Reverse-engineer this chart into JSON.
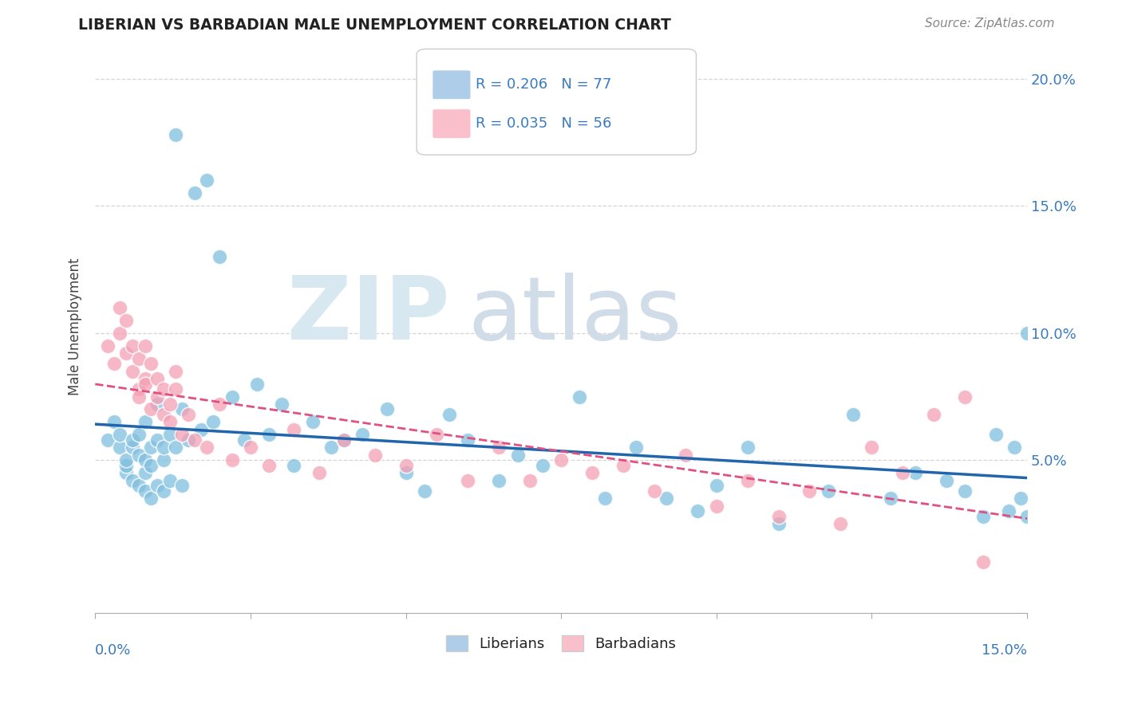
{
  "title": "LIBERIAN VS BARBADIAN MALE UNEMPLOYMENT CORRELATION CHART",
  "source": "Source: ZipAtlas.com",
  "ylabel": "Male Unemployment",
  "xlim": [
    0.0,
    0.15
  ],
  "ylim": [
    -0.01,
    0.215
  ],
  "ytick_vals": [
    0.05,
    0.1,
    0.15,
    0.2
  ],
  "ytick_labels": [
    "5.0%",
    "10.0%",
    "15.0%",
    "20.0%"
  ],
  "liberian_color": "#7fbfdf",
  "barbadian_color": "#f4a0b5",
  "liberian_R": 0.206,
  "liberian_N": 77,
  "barbadian_R": 0.035,
  "barbadian_N": 56,
  "legend_labels": [
    "Liberians",
    "Barbadians"
  ],
  "liberian_scatter_x": [
    0.002,
    0.003,
    0.004,
    0.004,
    0.005,
    0.005,
    0.005,
    0.006,
    0.006,
    0.006,
    0.007,
    0.007,
    0.007,
    0.008,
    0.008,
    0.008,
    0.008,
    0.009,
    0.009,
    0.009,
    0.01,
    0.01,
    0.01,
    0.011,
    0.011,
    0.011,
    0.012,
    0.012,
    0.013,
    0.013,
    0.014,
    0.014,
    0.015,
    0.016,
    0.017,
    0.018,
    0.019,
    0.02,
    0.022,
    0.024,
    0.026,
    0.028,
    0.03,
    0.032,
    0.035,
    0.038,
    0.04,
    0.043,
    0.047,
    0.05,
    0.053,
    0.057,
    0.06,
    0.065,
    0.068,
    0.072,
    0.078,
    0.082,
    0.087,
    0.092,
    0.097,
    0.1,
    0.105,
    0.11,
    0.118,
    0.122,
    0.128,
    0.132,
    0.137,
    0.14,
    0.143,
    0.145,
    0.147,
    0.148,
    0.149,
    0.15,
    0.15
  ],
  "liberian_scatter_y": [
    0.058,
    0.065,
    0.055,
    0.06,
    0.045,
    0.048,
    0.05,
    0.042,
    0.055,
    0.058,
    0.04,
    0.052,
    0.06,
    0.038,
    0.045,
    0.05,
    0.065,
    0.035,
    0.048,
    0.055,
    0.04,
    0.058,
    0.072,
    0.038,
    0.05,
    0.055,
    0.042,
    0.06,
    0.178,
    0.055,
    0.04,
    0.07,
    0.058,
    0.155,
    0.062,
    0.16,
    0.065,
    0.13,
    0.075,
    0.058,
    0.08,
    0.06,
    0.072,
    0.048,
    0.065,
    0.055,
    0.058,
    0.06,
    0.07,
    0.045,
    0.038,
    0.068,
    0.058,
    0.042,
    0.052,
    0.048,
    0.075,
    0.035,
    0.055,
    0.035,
    0.03,
    0.04,
    0.055,
    0.025,
    0.038,
    0.068,
    0.035,
    0.045,
    0.042,
    0.038,
    0.028,
    0.06,
    0.03,
    0.055,
    0.035,
    0.028,
    0.1
  ],
  "barbadian_scatter_x": [
    0.002,
    0.003,
    0.004,
    0.004,
    0.005,
    0.005,
    0.006,
    0.006,
    0.007,
    0.007,
    0.007,
    0.008,
    0.008,
    0.008,
    0.009,
    0.009,
    0.01,
    0.01,
    0.011,
    0.011,
    0.012,
    0.012,
    0.013,
    0.013,
    0.014,
    0.015,
    0.016,
    0.018,
    0.02,
    0.022,
    0.025,
    0.028,
    0.032,
    0.036,
    0.04,
    0.045,
    0.05,
    0.055,
    0.06,
    0.065,
    0.07,
    0.075,
    0.08,
    0.085,
    0.09,
    0.095,
    0.1,
    0.105,
    0.11,
    0.115,
    0.12,
    0.125,
    0.13,
    0.135,
    0.14,
    0.143
  ],
  "barbadian_scatter_y": [
    0.095,
    0.088,
    0.11,
    0.1,
    0.092,
    0.105,
    0.085,
    0.095,
    0.078,
    0.09,
    0.075,
    0.082,
    0.095,
    0.08,
    0.07,
    0.088,
    0.075,
    0.082,
    0.068,
    0.078,
    0.072,
    0.065,
    0.085,
    0.078,
    0.06,
    0.068,
    0.058,
    0.055,
    0.072,
    0.05,
    0.055,
    0.048,
    0.062,
    0.045,
    0.058,
    0.052,
    0.048,
    0.06,
    0.042,
    0.055,
    0.042,
    0.05,
    0.045,
    0.048,
    0.038,
    0.052,
    0.032,
    0.042,
    0.028,
    0.038,
    0.025,
    0.055,
    0.045,
    0.068,
    0.075,
    0.01
  ],
  "line_color_blue": "#2166ac",
  "line_color_pink": "#e05080",
  "legend_box_color_blue": "#aecde8",
  "legend_box_color_pink": "#f9c0cc",
  "stat_color": "#3a7bbf",
  "watermark_color": "#d8e8f0",
  "watermark_color2": "#d0dce8"
}
